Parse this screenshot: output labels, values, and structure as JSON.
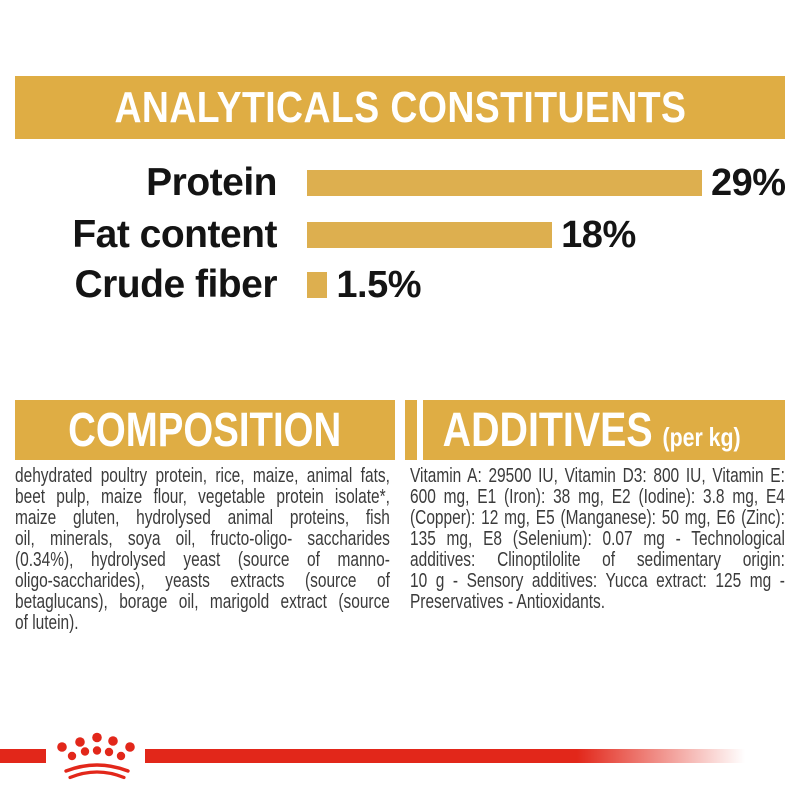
{
  "colors": {
    "gold_banner": "#DFAD44",
    "bar_gold": "#DDAF4F",
    "red": "#E2271A",
    "heading_text": "#FFFFFF",
    "chart_text": "#141414",
    "body_text": "#3B3B3B",
    "background": "#FFFFFF"
  },
  "header": {
    "title": "ANALYTICALS CONSTITUENTS"
  },
  "chart_data": {
    "type": "bar",
    "orientation": "horizontal",
    "title": "ANALYTICALS CONSTITUENTS",
    "categories": [
      "Protein",
      "Fat content",
      "Crude fiber"
    ],
    "values": [
      29,
      18,
      1.5
    ],
    "value_labels": [
      "29%",
      "18%",
      "1.5%"
    ],
    "unit": "%",
    "xlim": [
      0,
      29
    ],
    "bar_color": "#DDAF4F",
    "grid": false,
    "legend": false
  },
  "sections": {
    "composition": {
      "title": "COMPOSITION",
      "body_lines": [
        "dehydrated poultry protein, rice, maize, animal fats,",
        "beet pulp, maize flour, vegetable protein isolate*,",
        "maize gluten, hydrolysed animal proteins, fish",
        "oil, minerals, soya oil, fructo-oligo- saccharides",
        "(0.34%), hydrolysed yeast (source of manno-",
        "oligo-saccharides), yeasts extracts (source of",
        "betaglucans), borage oil, marigold extract (source",
        "of lutein)."
      ]
    },
    "additives": {
      "title": "ADDITIVES",
      "title_suffix": "(per kg)",
      "body_lines": [
        "Vitamin A: 29500 IU, Vitamin D3: 800 IU, Vitamin E:",
        "600 mg, E1 (Iron): 38 mg, E2 (Iodine): 3.8 mg, E4",
        "(Copper): 12 mg, E5 (Manganese): 50 mg, E6 (Zinc):",
        "135 mg, E8 (Selenium): 0.07 mg - Technological",
        "additives: Clinoptilolite of sedimentary origin:",
        "10 g - Sensory additives: Yucca extract: 125 mg -",
        "Preservatives - Antioxidants."
      ]
    }
  },
  "footer": {
    "logo": "royal-canin-crown-logo"
  }
}
